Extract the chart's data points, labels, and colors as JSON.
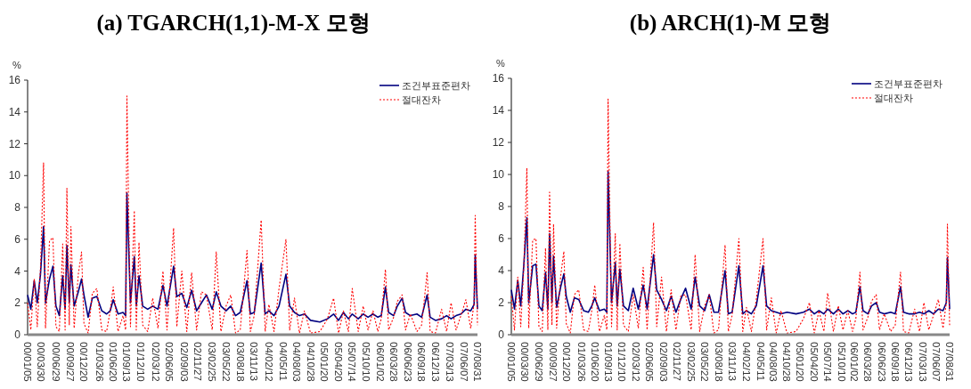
{
  "chart_data": [
    {
      "type": "line",
      "title": "(a)  TGARCH(1,1)-M-X 모형",
      "ylabel": "%",
      "legend": "top right",
      "grid": false,
      "x": [
        "2000-01-05",
        "2000-01-25",
        "2000-02-15",
        "2000-03-05",
        "2000-03-25",
        "2000-04-13",
        "2000-04-25",
        "2000-05-20",
        "2000-06-10",
        "2000-06-29",
        "2000-07-20",
        "2000-08-10",
        "2000-08-25",
        "2000-09-05",
        "2000-09-20",
        "2000-09-30",
        "2000-10-20",
        "2000-11-15",
        "2000-12-05",
        "2000-12-20",
        "2001-01-15",
        "2001-02-10",
        "2001-03-10",
        "2001-04-10",
        "2001-05-10",
        "2001-06-01",
        "2001-06-20",
        "2001-07-20",
        "2001-08-20",
        "2001-09-05",
        "2001-09-13",
        "2001-10-05",
        "2001-10-29",
        "2001-11-10",
        "2001-11-27",
        "2001-12-20",
        "2002-01-20",
        "2002-02-20",
        "2002-03-25",
        "2002-04-25",
        "2002-05-20",
        "2002-06-30",
        "2002-07-20",
        "2002-08-20",
        "2002-09-20",
        "2002-10-20",
        "2002-11-20",
        "2002-12-20",
        "2003-01-20",
        "2003-02-25",
        "2003-03-22",
        "2003-04-20",
        "2003-05-22",
        "2003-06-20",
        "2003-07-20",
        "2003-08-18",
        "2003-09-29",
        "2003-10-20",
        "2003-11-13",
        "2003-12-26",
        "2004-01-20",
        "2004-02-12",
        "2004-03-15",
        "2004-04-15",
        "2004-05-28",
        "2004-06-20",
        "2004-07-20",
        "2004-08-20",
        "2004-09-20",
        "2004-10-28",
        "2004-12-25",
        "2005-02-10",
        "2005-03-20",
        "2005-04-20",
        "2005-05-20",
        "2005-06-20",
        "2005-07-14",
        "2005-08-20",
        "2005-09-20",
        "2005-10-20",
        "2005-11-20",
        "2005-12-20",
        "2006-01-10",
        "2006-02-05",
        "2006-02-25",
        "2006-03-28",
        "2006-04-20",
        "2006-05-20",
        "2006-06-10",
        "2006-07-10",
        "2006-08-20",
        "2006-09-18",
        "2006-10-22",
        "2006-11-10",
        "2006-12-13",
        "2007-01-20",
        "2007-02-20",
        "2007-03-20",
        "2007-04-20",
        "2007-05-20",
        "2007-06-20",
        "2007-07-20",
        "2007-08-10",
        "2007-08-17",
        "2007-08-31"
      ],
      "xlim": [
        "2000-01-05",
        "2007-08-31"
      ],
      "xticks": [
        {
          "value": "2000-01-05",
          "label": "00/01/05"
        },
        {
          "value": "2000-03-30",
          "label": "00/03/30"
        },
        {
          "value": "2000-06-29",
          "label": "00/06/29"
        },
        {
          "value": "2000-09-27",
          "label": "00/09/27"
        },
        {
          "value": "2000-12-20",
          "label": "00/12/20"
        },
        {
          "value": "2001-03-26",
          "label": "01/03/26"
        },
        {
          "value": "2001-06-20",
          "label": "01/06/20"
        },
        {
          "value": "2001-09-13",
          "label": "01/09/13"
        },
        {
          "value": "2001-12-10",
          "label": "01/12/10"
        },
        {
          "value": "2002-03-12",
          "label": "02/03/12"
        },
        {
          "value": "2002-06-05",
          "label": "02/06/05"
        },
        {
          "value": "2002-09-03",
          "label": "02/09/03"
        },
        {
          "value": "2002-11-27",
          "label": "02/11/27"
        },
        {
          "value": "2003-02-25",
          "label": "03/02/25"
        },
        {
          "value": "2003-05-22",
          "label": "03/05/22"
        },
        {
          "value": "2003-08-18",
          "label": "03/08/18"
        },
        {
          "value": "2003-11-13",
          "label": "03/11/13"
        },
        {
          "value": "2004-02-12",
          "label": "04/02/12"
        },
        {
          "value": "2004-05-11",
          "label": "04/05/11"
        },
        {
          "value": "2004-08-03",
          "label": "04/08/03"
        },
        {
          "value": "2004-10-28",
          "label": "04/10/28"
        },
        {
          "value": "2005-01-20",
          "label": "05/01/20"
        },
        {
          "value": "2005-04-20",
          "label": "05/04/20"
        },
        {
          "value": "2005-07-14",
          "label": "05/07/14"
        },
        {
          "value": "2005-10-10",
          "label": "05/10/10"
        },
        {
          "value": "2006-01-02",
          "label": "06/01/02"
        },
        {
          "value": "2006-03-28",
          "label": "06/03/28"
        },
        {
          "value": "2006-06-23",
          "label": "06/06/23"
        },
        {
          "value": "2006-09-18",
          "label": "06/09/18"
        },
        {
          "value": "2006-12-13",
          "label": "06/12/13"
        },
        {
          "value": "2007-03-13",
          "label": "07/03/13"
        },
        {
          "value": "2007-06-07",
          "label": "07/06/07"
        },
        {
          "value": "2007-08-31",
          "label": "07/08/31"
        }
      ],
      "ylim": [
        0,
        16
      ],
      "yticks": [
        0,
        2,
        4,
        6,
        8,
        10,
        12,
        14,
        16
      ],
      "series": [
        {
          "name": "조건부표준편차",
          "color": "#000080",
          "line_style": "solid",
          "values": [
            2.5,
            1.6,
            3.4,
            2.0,
            3.8,
            6.8,
            2.0,
            3.5,
            4.3,
            1.8,
            1.2,
            3.7,
            1.6,
            5.6,
            2.0,
            4.4,
            1.8,
            2.7,
            3.5,
            2.5,
            1.1,
            2.3,
            2.4,
            1.5,
            1.3,
            1.5,
            2.2,
            1.3,
            1.4,
            1.2,
            8.9,
            2.0,
            4.9,
            1.8,
            3.7,
            1.8,
            1.6,
            1.8,
            1.6,
            3.1,
            1.8,
            4.3,
            2.4,
            2.6,
            1.7,
            2.8,
            1.5,
            2.0,
            2.5,
            1.6,
            2.7,
            1.8,
            1.5,
            1.8,
            1.2,
            1.4,
            3.4,
            1.3,
            1.4,
            4.5,
            1.3,
            1.5,
            1.2,
            1.8,
            3.8,
            1.8,
            1.4,
            1.2,
            1.3,
            0.9,
            0.8,
            1.0,
            1.3,
            0.9,
            1.4,
            1.0,
            1.3,
            1.0,
            1.3,
            1.1,
            1.3,
            1.1,
            1.2,
            3.0,
            1.4,
            1.2,
            1.8,
            2.3,
            1.4,
            1.2,
            1.3,
            1.1,
            2.5,
            1.1,
            0.9,
            1.0,
            1.2,
            1.0,
            1.2,
            1.3,
            1.6,
            1.5,
            1.9,
            5.0,
            1.6
          ]
        },
        {
          "name": "절대잔차",
          "color": "#ff0000",
          "line_style": "dotted",
          "values": [
            2.0,
            0.3,
            3.5,
            0.5,
            4.2,
            10.8,
            0.4,
            5.9,
            6.1,
            0.5,
            0.2,
            5.7,
            0.3,
            9.2,
            0.6,
            6.8,
            0.4,
            3.8,
            5.2,
            0.7,
            0.1,
            2.6,
            2.9,
            0.3,
            0.2,
            1.5,
            3.0,
            0.2,
            1.2,
            0.3,
            15.0,
            0.5,
            7.8,
            0.3,
            5.8,
            0.6,
            0.2,
            2.3,
            0.4,
            4.0,
            0.3,
            6.7,
            0.5,
            4.0,
            0.2,
            3.9,
            0.3,
            2.7,
            2.5,
            0.3,
            5.2,
            0.2,
            1.8,
            2.5,
            0.1,
            0.3,
            5.3,
            0.2,
            1.2,
            7.2,
            0.2,
            1.9,
            0.2,
            2.9,
            6.0,
            0.3,
            2.3,
            0.1,
            1.5,
            0.1,
            0.2,
            1.0,
            2.3,
            0.1,
            1.5,
            0.2,
            2.9,
            0.2,
            1.8,
            0.3,
            1.5,
            0.2,
            1.0,
            4.1,
            0.3,
            1.1,
            2.1,
            2.5,
            0.3,
            1.3,
            0.2,
            0.6,
            3.9,
            0.2,
            0.1,
            1.6,
            0.2,
            2.0,
            0.3,
            1.2,
            2.2,
            0.4,
            2.0,
            7.5,
            0.6
          ]
        }
      ]
    },
    {
      "type": "line",
      "title": "(b)  ARCH(1)-M 모형",
      "ylabel": "%",
      "legend": "top right",
      "grid": false,
      "x": [
        "2000-01-05",
        "2000-01-25",
        "2000-02-15",
        "2000-03-05",
        "2000-03-25",
        "2000-04-13",
        "2000-04-25",
        "2000-05-20",
        "2000-06-10",
        "2000-06-29",
        "2000-07-20",
        "2000-08-10",
        "2000-08-25",
        "2000-09-05",
        "2000-09-20",
        "2000-09-30",
        "2000-10-20",
        "2000-11-15",
        "2000-12-05",
        "2000-12-20",
        "2001-01-15",
        "2001-02-10",
        "2001-03-10",
        "2001-04-10",
        "2001-05-10",
        "2001-06-01",
        "2001-06-20",
        "2001-07-20",
        "2001-08-20",
        "2001-09-05",
        "2001-09-13",
        "2001-10-05",
        "2001-10-29",
        "2001-11-10",
        "2001-11-27",
        "2001-12-20",
        "2002-01-20",
        "2002-02-20",
        "2002-03-25",
        "2002-04-25",
        "2002-05-20",
        "2002-06-30",
        "2002-07-20",
        "2002-08-20",
        "2002-09-20",
        "2002-10-20",
        "2002-11-20",
        "2002-12-20",
        "2003-01-20",
        "2003-02-25",
        "2003-03-22",
        "2003-04-20",
        "2003-05-22",
        "2003-06-20",
        "2003-07-20",
        "2003-08-18",
        "2003-09-29",
        "2003-10-20",
        "2003-11-13",
        "2003-12-26",
        "2004-01-20",
        "2004-02-12",
        "2004-03-15",
        "2004-04-15",
        "2004-05-28",
        "2004-06-20",
        "2004-07-20",
        "2004-08-20",
        "2004-09-20",
        "2004-10-28",
        "2004-12-25",
        "2005-02-10",
        "2005-03-20",
        "2005-04-20",
        "2005-05-20",
        "2005-06-20",
        "2005-07-14",
        "2005-08-20",
        "2005-09-20",
        "2005-10-20",
        "2005-11-20",
        "2005-12-20",
        "2006-01-10",
        "2006-02-05",
        "2006-02-25",
        "2006-03-28",
        "2006-04-20",
        "2006-05-20",
        "2006-06-10",
        "2006-07-10",
        "2006-08-20",
        "2006-09-18",
        "2006-10-22",
        "2006-11-10",
        "2006-12-13",
        "2007-01-20",
        "2007-02-20",
        "2007-03-20",
        "2007-04-20",
        "2007-05-20",
        "2007-06-20",
        "2007-07-20",
        "2007-08-10",
        "2007-08-17",
        "2007-08-31"
      ],
      "xlim": [
        "2000-01-05",
        "2007-08-31"
      ],
      "xticks": [
        {
          "value": "2000-01-05",
          "label": "00/01/05"
        },
        {
          "value": "2000-03-30",
          "label": "00/03/30"
        },
        {
          "value": "2000-06-29",
          "label": "00/06/29"
        },
        {
          "value": "2000-09-27",
          "label": "00/09/27"
        },
        {
          "value": "2000-12-20",
          "label": "00/12/20"
        },
        {
          "value": "2001-03-26",
          "label": "01/03/26"
        },
        {
          "value": "2001-06-20",
          "label": "01/06/20"
        },
        {
          "value": "2001-09-13",
          "label": "01/09/13"
        },
        {
          "value": "2001-12-10",
          "label": "01/12/10"
        },
        {
          "value": "2002-03-12",
          "label": "02/03/12"
        },
        {
          "value": "2002-06-05",
          "label": "02/06/05"
        },
        {
          "value": "2002-09-03",
          "label": "02/09/03"
        },
        {
          "value": "2002-11-27",
          "label": "02/11/27"
        },
        {
          "value": "2003-02-25",
          "label": "03/02/25"
        },
        {
          "value": "2003-05-22",
          "label": "03/05/22"
        },
        {
          "value": "2003-08-18",
          "label": "03/08/18"
        },
        {
          "value": "2003-11-13",
          "label": "03/11/13"
        },
        {
          "value": "2004-02-12",
          "label": "04/02/12"
        },
        {
          "value": "2004-05-11",
          "label": "04/05/11"
        },
        {
          "value": "2004-08-03",
          "label": "04/08/03"
        },
        {
          "value": "2004-10-28",
          "label": "04/10/28"
        },
        {
          "value": "2005-01-20",
          "label": "05/01/20"
        },
        {
          "value": "2005-04-20",
          "label": "05/04/20"
        },
        {
          "value": "2005-07-14",
          "label": "05/07/14"
        },
        {
          "value": "2005-10-10",
          "label": "05/10/10"
        },
        {
          "value": "2006-01-02",
          "label": "06/01/02"
        },
        {
          "value": "2006-03-28",
          "label": "06/03/28"
        },
        {
          "value": "2006-06-23",
          "label": "06/06/23"
        },
        {
          "value": "2006-09-18",
          "label": "06/09/18"
        },
        {
          "value": "2006-12-13",
          "label": "06/12/13"
        },
        {
          "value": "2007-03-13",
          "label": "07/03/13"
        },
        {
          "value": "2007-06-07",
          "label": "07/06/07"
        },
        {
          "value": "2007-08-31",
          "label": "07/08/31"
        }
      ],
      "ylim": [
        0,
        16
      ],
      "yticks": [
        0,
        2,
        4,
        6,
        8,
        10,
        12,
        14,
        16
      ],
      "series": [
        {
          "name": "조건부표준편차",
          "color": "#000080",
          "line_style": "solid",
          "values": [
            2.8,
            1.6,
            3.4,
            1.8,
            4.4,
            7.3,
            2.0,
            4.3,
            4.4,
            1.8,
            1.5,
            3.9,
            1.6,
            6.3,
            2.0,
            4.9,
            1.7,
            3.0,
            3.8,
            2.4,
            1.4,
            2.3,
            2.2,
            1.5,
            1.4,
            1.8,
            2.3,
            1.5,
            1.6,
            1.4,
            10.2,
            2.0,
            4.5,
            1.8,
            4.1,
            1.8,
            1.5,
            2.9,
            1.6,
            3.1,
            1.6,
            5.0,
            2.8,
            2.2,
            1.5,
            2.4,
            1.4,
            2.2,
            2.9,
            1.6,
            3.6,
            1.8,
            1.5,
            2.5,
            1.4,
            1.4,
            4.0,
            1.3,
            1.4,
            4.3,
            1.3,
            1.5,
            1.3,
            1.8,
            4.3,
            1.8,
            1.5,
            1.4,
            1.3,
            1.4,
            1.3,
            1.4,
            1.6,
            1.3,
            1.5,
            1.3,
            1.6,
            1.3,
            1.6,
            1.3,
            1.5,
            1.3,
            1.4,
            3.0,
            1.5,
            1.3,
            1.8,
            2.0,
            1.4,
            1.3,
            1.4,
            1.3,
            3.0,
            1.4,
            1.3,
            1.3,
            1.4,
            1.3,
            1.5,
            1.3,
            1.6,
            1.5,
            2.0,
            4.8,
            1.6
          ]
        },
        {
          "name": "절대잔차",
          "color": "#ff0000",
          "line_style": "dotted",
          "values": [
            2.4,
            0.3,
            3.6,
            0.5,
            4.3,
            10.4,
            0.4,
            5.9,
            6.0,
            0.5,
            0.2,
            5.4,
            0.3,
            8.9,
            0.6,
            6.9,
            0.4,
            3.7,
            5.2,
            0.7,
            0.1,
            2.5,
            2.8,
            0.3,
            0.2,
            1.5,
            3.1,
            0.2,
            1.2,
            0.3,
            14.7,
            0.5,
            6.3,
            0.3,
            5.7,
            0.6,
            0.2,
            2.5,
            0.4,
            4.2,
            0.3,
            7.0,
            0.5,
            3.6,
            0.2,
            2.8,
            0.3,
            2.4,
            2.5,
            0.3,
            5.0,
            0.2,
            1.8,
            2.5,
            0.1,
            0.3,
            5.6,
            0.2,
            1.2,
            6.0,
            0.2,
            1.7,
            0.2,
            2.2,
            6.0,
            0.3,
            2.3,
            0.1,
            1.5,
            0.1,
            0.2,
            1.0,
            2.0,
            0.1,
            1.5,
            0.2,
            2.6,
            0.2,
            1.8,
            0.3,
            1.5,
            0.2,
            1.0,
            3.9,
            0.3,
            1.1,
            2.1,
            2.5,
            0.3,
            1.3,
            0.2,
            0.6,
            3.9,
            0.2,
            0.1,
            1.6,
            0.2,
            2.0,
            0.3,
            1.2,
            2.2,
            0.4,
            2.0,
            6.9,
            0.6
          ]
        }
      ]
    }
  ]
}
